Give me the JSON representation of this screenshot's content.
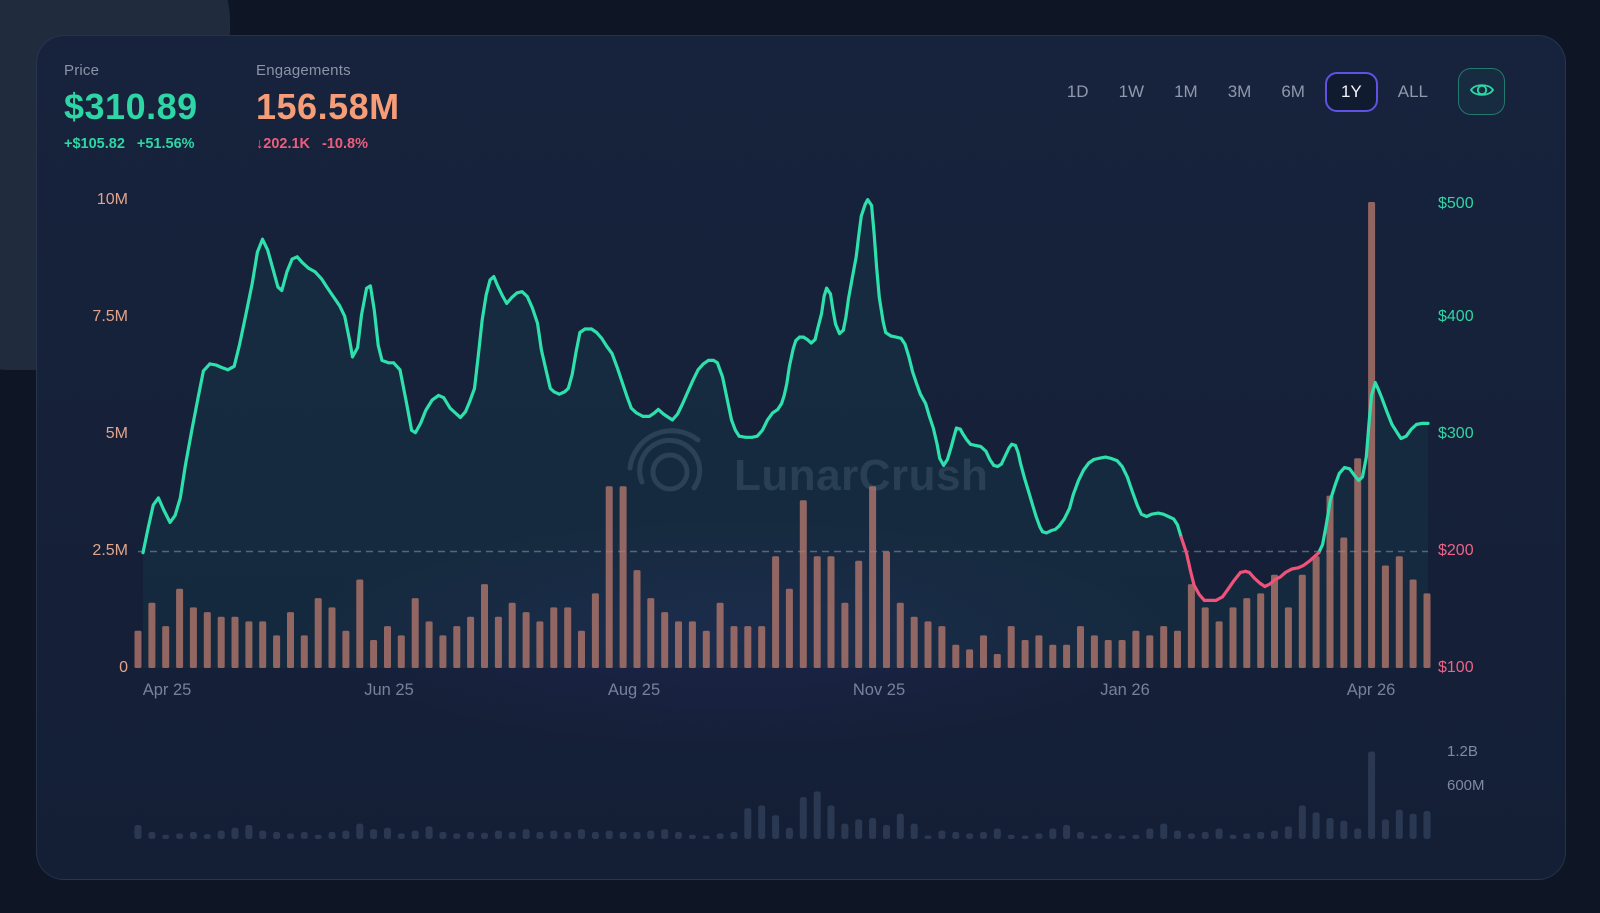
{
  "header": {
    "price": {
      "label": "Price",
      "value": "$310.89",
      "change_abs": "+$105.82",
      "change_pct": "+51.56%",
      "color": "#2fd6a5"
    },
    "engagements": {
      "label": "Engagements",
      "value": "156.58M",
      "change_abs": "↓202.1K",
      "change_pct": "-10.8%",
      "value_color": "#f69d77",
      "change_color": "#ee5d7c"
    },
    "ranges": [
      "1D",
      "1W",
      "1M",
      "3M",
      "6M",
      "1Y",
      "ALL"
    ],
    "active_range": "1Y"
  },
  "watermark": {
    "text": "LunarCrush"
  },
  "chart_data": {
    "type": "line+bar",
    "title": "Price and Engagements over 1 year",
    "x_axis": {
      "labels": [
        {
          "text": "Apr 25",
          "t": 0.017
        },
        {
          "text": "Jun 25",
          "t": 0.19
        },
        {
          "text": "Aug 25",
          "t": 0.381
        },
        {
          "text": "Nov 25",
          "t": 0.572
        },
        {
          "text": "Jan 26",
          "t": 0.763
        },
        {
          "text": "Apr 26",
          "t": 0.955
        }
      ]
    },
    "left_axis": {
      "unit": "M",
      "color": "#e2a38b",
      "range": [
        0,
        10
      ],
      "ticks": [
        {
          "label": "10M",
          "value": 10
        },
        {
          "label": "7.5M",
          "value": 7.5
        },
        {
          "label": "5M",
          "value": 5
        },
        {
          "label": "2.5M",
          "value": 2.5
        },
        {
          "label": "0",
          "value": 0
        }
      ]
    },
    "right_axis": {
      "unit": "USD",
      "range": [
        100,
        500
      ],
      "ticks": [
        {
          "label": "$500",
          "value": 500,
          "color": "#2fd6a5"
        },
        {
          "label": "$400",
          "value": 400,
          "color": "#2fd6a5"
        },
        {
          "label": "$300",
          "value": 300,
          "color": "#2fd6a5"
        },
        {
          "label": "$200",
          "value": 200,
          "color": "#ef6287"
        },
        {
          "label": "$100",
          "value": 100,
          "color": "#ef6287"
        }
      ]
    },
    "reference_price": 200,
    "price_line": {
      "color_up": "#2ee0ac",
      "color_down": "#f0527a",
      "width": 3.2,
      "area_fill": "rgba(46,224,172,0.05)",
      "pink_t_range": [
        0.81,
        0.916
      ],
      "points": [
        [
          0.0,
          199
        ],
        [
          0.004,
          220
        ],
        [
          0.008,
          240
        ],
        [
          0.012,
          246
        ],
        [
          0.016,
          236
        ],
        [
          0.021,
          225
        ],
        [
          0.025,
          231
        ],
        [
          0.029,
          246
        ],
        [
          0.033,
          274
        ],
        [
          0.038,
          304
        ],
        [
          0.043,
          333
        ],
        [
          0.047,
          355
        ],
        [
          0.052,
          361
        ],
        [
          0.057,
          360
        ],
        [
          0.061,
          358
        ],
        [
          0.066,
          356
        ],
        [
          0.071,
          359
        ],
        [
          0.075,
          377
        ],
        [
          0.08,
          403
        ],
        [
          0.085,
          430
        ],
        [
          0.089,
          457
        ],
        [
          0.093,
          468
        ],
        [
          0.097,
          459
        ],
        [
          0.101,
          443
        ],
        [
          0.105,
          427
        ],
        [
          0.108,
          424
        ],
        [
          0.112,
          440
        ],
        [
          0.116,
          451
        ],
        [
          0.12,
          453
        ],
        [
          0.124,
          448
        ],
        [
          0.129,
          443
        ],
        [
          0.134,
          440
        ],
        [
          0.139,
          434
        ],
        [
          0.143,
          427
        ],
        [
          0.148,
          419
        ],
        [
          0.153,
          411
        ],
        [
          0.157,
          402
        ],
        [
          0.161,
          380
        ],
        [
          0.163,
          367
        ],
        [
          0.167,
          375
        ],
        [
          0.17,
          403
        ],
        [
          0.174,
          426
        ],
        [
          0.177,
          428
        ],
        [
          0.18,
          407
        ],
        [
          0.183,
          377
        ],
        [
          0.186,
          364
        ],
        [
          0.191,
          362
        ],
        [
          0.195,
          362
        ],
        [
          0.2,
          356
        ],
        [
          0.205,
          328
        ],
        [
          0.209,
          304
        ],
        [
          0.212,
          302
        ],
        [
          0.216,
          310
        ],
        [
          0.22,
          321
        ],
        [
          0.225,
          330
        ],
        [
          0.23,
          334
        ],
        [
          0.234,
          332
        ],
        [
          0.239,
          323
        ],
        [
          0.244,
          318
        ],
        [
          0.247,
          315
        ],
        [
          0.251,
          320
        ],
        [
          0.254,
          328
        ],
        [
          0.258,
          340
        ],
        [
          0.261,
          369
        ],
        [
          0.264,
          399
        ],
        [
          0.267,
          420
        ],
        [
          0.27,
          433
        ],
        [
          0.273,
          436
        ],
        [
          0.276,
          428
        ],
        [
          0.28,
          419
        ],
        [
          0.283,
          413
        ],
        [
          0.287,
          418
        ],
        [
          0.291,
          422
        ],
        [
          0.295,
          423
        ],
        [
          0.299,
          419
        ],
        [
          0.303,
          409
        ],
        [
          0.307,
          396
        ],
        [
          0.31,
          373
        ],
        [
          0.314,
          354
        ],
        [
          0.317,
          340
        ],
        [
          0.32,
          337
        ],
        [
          0.324,
          335
        ],
        [
          0.328,
          337
        ],
        [
          0.331,
          340
        ],
        [
          0.334,
          352
        ],
        [
          0.337,
          371
        ],
        [
          0.34,
          388
        ],
        [
          0.344,
          391
        ],
        [
          0.349,
          391
        ],
        [
          0.353,
          388
        ],
        [
          0.357,
          383
        ],
        [
          0.361,
          376
        ],
        [
          0.365,
          370
        ],
        [
          0.369,
          358
        ],
        [
          0.373,
          345
        ],
        [
          0.377,
          332
        ],
        [
          0.38,
          323
        ],
        [
          0.384,
          319
        ],
        [
          0.389,
          316
        ],
        [
          0.394,
          316
        ],
        [
          0.398,
          319
        ],
        [
          0.401,
          322
        ],
        [
          0.405,
          318
        ],
        [
          0.409,
          315
        ],
        [
          0.412,
          313
        ],
        [
          0.416,
          318
        ],
        [
          0.42,
          327
        ],
        [
          0.424,
          337
        ],
        [
          0.428,
          347
        ],
        [
          0.432,
          356
        ],
        [
          0.436,
          361
        ],
        [
          0.44,
          364
        ],
        [
          0.444,
          364
        ],
        [
          0.447,
          362
        ],
        [
          0.451,
          350
        ],
        [
          0.454,
          334
        ],
        [
          0.458,
          313
        ],
        [
          0.461,
          304
        ],
        [
          0.464,
          299
        ],
        [
          0.469,
          298
        ],
        [
          0.474,
          298
        ],
        [
          0.478,
          299
        ],
        [
          0.482,
          304
        ],
        [
          0.486,
          313
        ],
        [
          0.49,
          319
        ],
        [
          0.494,
          322
        ],
        [
          0.497,
          327
        ],
        [
          0.499,
          334
        ],
        [
          0.501,
          344
        ],
        [
          0.503,
          359
        ],
        [
          0.506,
          374
        ],
        [
          0.508,
          381
        ],
        [
          0.511,
          384
        ],
        [
          0.514,
          384
        ],
        [
          0.517,
          382
        ],
        [
          0.52,
          379
        ],
        [
          0.523,
          382
        ],
        [
          0.525,
          391
        ],
        [
          0.528,
          404
        ],
        [
          0.53,
          419
        ],
        [
          0.532,
          426
        ],
        [
          0.535,
          421
        ],
        [
          0.537,
          407
        ],
        [
          0.539,
          395
        ],
        [
          0.542,
          387
        ],
        [
          0.545,
          390
        ],
        [
          0.547,
          401
        ],
        [
          0.549,
          417
        ],
        [
          0.552,
          435
        ],
        [
          0.555,
          453
        ],
        [
          0.557,
          471
        ],
        [
          0.559,
          488
        ],
        [
          0.562,
          498
        ],
        [
          0.564,
          502
        ],
        [
          0.567,
          497
        ],
        [
          0.569,
          472
        ],
        [
          0.571,
          443
        ],
        [
          0.573,
          418
        ],
        [
          0.576,
          397
        ],
        [
          0.578,
          388
        ],
        [
          0.582,
          385
        ],
        [
          0.586,
          384
        ],
        [
          0.59,
          383
        ],
        [
          0.593,
          378
        ],
        [
          0.596,
          367
        ],
        [
          0.599,
          354
        ],
        [
          0.602,
          344
        ],
        [
          0.605,
          335
        ],
        [
          0.609,
          327
        ],
        [
          0.612,
          316
        ],
        [
          0.615,
          306
        ],
        [
          0.618,
          292
        ],
        [
          0.62,
          280
        ],
        [
          0.623,
          274
        ],
        [
          0.626,
          279
        ],
        [
          0.629,
          290
        ],
        [
          0.631,
          298
        ],
        [
          0.633,
          306
        ],
        [
          0.636,
          305
        ],
        [
          0.638,
          301
        ],
        [
          0.641,
          296
        ],
        [
          0.644,
          292
        ],
        [
          0.648,
          291
        ],
        [
          0.652,
          290
        ],
        [
          0.656,
          286
        ],
        [
          0.659,
          279
        ],
        [
          0.662,
          274
        ],
        [
          0.665,
          273
        ],
        [
          0.668,
          275
        ],
        [
          0.671,
          282
        ],
        [
          0.674,
          289
        ],
        [
          0.676,
          292
        ],
        [
          0.679,
          291
        ],
        [
          0.681,
          285
        ],
        [
          0.683,
          275
        ],
        [
          0.686,
          263
        ],
        [
          0.689,
          252
        ],
        [
          0.692,
          241
        ],
        [
          0.695,
          230
        ],
        [
          0.698,
          221
        ],
        [
          0.7,
          217
        ],
        [
          0.703,
          216
        ],
        [
          0.707,
          218
        ],
        [
          0.71,
          219
        ],
        [
          0.713,
          222
        ],
        [
          0.717,
          228
        ],
        [
          0.721,
          237
        ],
        [
          0.724,
          249
        ],
        [
          0.728,
          261
        ],
        [
          0.732,
          270
        ],
        [
          0.736,
          276
        ],
        [
          0.74,
          279
        ],
        [
          0.744,
          280
        ],
        [
          0.749,
          281
        ],
        [
          0.753,
          280
        ],
        [
          0.758,
          278
        ],
        [
          0.762,
          273
        ],
        [
          0.766,
          264
        ],
        [
          0.77,
          251
        ],
        [
          0.774,
          239
        ],
        [
          0.777,
          232
        ],
        [
          0.781,
          230
        ],
        [
          0.785,
          232
        ],
        [
          0.79,
          233
        ],
        [
          0.794,
          232
        ],
        [
          0.798,
          230
        ],
        [
          0.802,
          228
        ],
        [
          0.805,
          223
        ],
        [
          0.808,
          212
        ],
        [
          0.812,
          199
        ],
        [
          0.815,
          184
        ],
        [
          0.818,
          171
        ],
        [
          0.822,
          163
        ],
        [
          0.826,
          158
        ],
        [
          0.83,
          158
        ],
        [
          0.835,
          158
        ],
        [
          0.84,
          161
        ],
        [
          0.844,
          167
        ],
        [
          0.849,
          175
        ],
        [
          0.854,
          182
        ],
        [
          0.858,
          183
        ],
        [
          0.861,
          182
        ],
        [
          0.865,
          177
        ],
        [
          0.869,
          173
        ],
        [
          0.873,
          170
        ],
        [
          0.877,
          172
        ],
        [
          0.881,
          176
        ],
        [
          0.885,
          178
        ],
        [
          0.889,
          182
        ],
        [
          0.894,
          185
        ],
        [
          0.899,
          186
        ],
        [
          0.903,
          188
        ],
        [
          0.908,
          192
        ],
        [
          0.912,
          196
        ],
        [
          0.915,
          199
        ],
        [
          0.918,
          206
        ],
        [
          0.921,
          224
        ],
        [
          0.924,
          244
        ],
        [
          0.928,
          258
        ],
        [
          0.931,
          267
        ],
        [
          0.935,
          272
        ],
        [
          0.939,
          271
        ],
        [
          0.943,
          265
        ],
        [
          0.946,
          261
        ],
        [
          0.949,
          264
        ],
        [
          0.952,
          281
        ],
        [
          0.954,
          309
        ],
        [
          0.956,
          334
        ],
        [
          0.959,
          345
        ],
        [
          0.961,
          340
        ],
        [
          0.964,
          332
        ],
        [
          0.968,
          320
        ],
        [
          0.972,
          309
        ],
        [
          0.976,
          302
        ],
        [
          0.979,
          297
        ],
        [
          0.983,
          299
        ],
        [
          0.987,
          305
        ],
        [
          0.991,
          309
        ],
        [
          0.995,
          310
        ],
        [
          1.0,
          310
        ]
      ]
    },
    "engagement_bars": {
      "color": "#b5786c",
      "opacity": 0.78,
      "unit": "M",
      "values": [
        0.8,
        1.4,
        0.9,
        1.7,
        1.3,
        1.2,
        1.1,
        1.1,
        1.0,
        1.0,
        0.7,
        1.2,
        0.7,
        1.5,
        1.3,
        0.8,
        1.9,
        0.6,
        0.9,
        0.7,
        1.5,
        1.0,
        0.7,
        0.9,
        1.1,
        1.8,
        1.1,
        1.4,
        1.2,
        1.0,
        1.3,
        1.3,
        0.8,
        1.6,
        3.9,
        3.9,
        2.1,
        1.5,
        1.2,
        1.0,
        1.0,
        0.8,
        1.4,
        0.9,
        0.9,
        0.9,
        2.4,
        1.7,
        3.6,
        2.4,
        2.4,
        1.4,
        2.3,
        3.9,
        2.5,
        1.4,
        1.1,
        1.0,
        0.9,
        0.5,
        0.4,
        0.7,
        0.3,
        0.9,
        0.6,
        0.7,
        0.5,
        0.5,
        0.9,
        0.7,
        0.6,
        0.6,
        0.8,
        0.7,
        0.9,
        0.8,
        1.8,
        1.3,
        1.0,
        1.3,
        1.5,
        1.6,
        2.0,
        1.3,
        2.0,
        2.4,
        3.7,
        2.8,
        4.5,
        10.0,
        2.2,
        2.4,
        1.9,
        1.6
      ]
    },
    "mini_chart": {
      "color": "#3a4862",
      "opacity": 0.62,
      "unit": "B",
      "labels": [
        {
          "text": "1.2B"
        },
        {
          "text": "600M"
        }
      ],
      "values": [
        0.2,
        0.1,
        0.06,
        0.08,
        0.1,
        0.07,
        0.12,
        0.16,
        0.2,
        0.12,
        0.1,
        0.08,
        0.1,
        0.06,
        0.1,
        0.12,
        0.22,
        0.14,
        0.16,
        0.08,
        0.12,
        0.18,
        0.1,
        0.08,
        0.1,
        0.09,
        0.12,
        0.1,
        0.14,
        0.1,
        0.12,
        0.1,
        0.14,
        0.1,
        0.12,
        0.1,
        0.1,
        0.12,
        0.14,
        0.1,
        0.06,
        0.05,
        0.08,
        0.1,
        0.44,
        0.48,
        0.34,
        0.16,
        0.6,
        0.68,
        0.48,
        0.22,
        0.28,
        0.3,
        0.2,
        0.36,
        0.22,
        0.05,
        0.12,
        0.1,
        0.08,
        0.1,
        0.15,
        0.06,
        0.05,
        0.08,
        0.15,
        0.2,
        0.1,
        0.05,
        0.08,
        0.05,
        0.06,
        0.15,
        0.22,
        0.12,
        0.08,
        0.1,
        0.15,
        0.06,
        0.08,
        0.1,
        0.12,
        0.18,
        0.48,
        0.38,
        0.3,
        0.26,
        0.15,
        1.25,
        0.28,
        0.42,
        0.36,
        0.4
      ]
    }
  }
}
